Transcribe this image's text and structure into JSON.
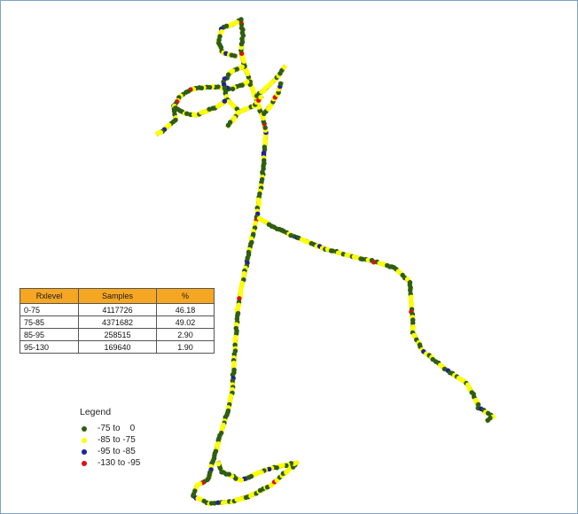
{
  "stats_table": {
    "headers": [
      "Rxlevel",
      "Samples",
      "%"
    ],
    "rows": [
      [
        "0-75",
        "4117726",
        "46.18"
      ],
      [
        "75-85",
        "4371682",
        "49.02"
      ],
      [
        "85-95",
        "258515",
        "2.90"
      ],
      [
        "95-130",
        "169640",
        "1.90"
      ]
    ],
    "header_color": "#f5a623"
  },
  "legend": {
    "title": "Legend",
    "items": [
      {
        "label": "-75 to    0",
        "color": "#2e5d14"
      },
      {
        "label": "-85 to -75",
        "color": "#ffff00"
      },
      {
        "label": "-95 to -85",
        "color": "#1f1fa0"
      },
      {
        "label": "-130 to -95",
        "color": "#e01010"
      }
    ]
  },
  "colors": {
    "good": "#2e5d14",
    "fair": "#ffff00",
    "poor": "#1f1fa0",
    "bad": "#e01010",
    "border": "#7fa3c8"
  }
}
